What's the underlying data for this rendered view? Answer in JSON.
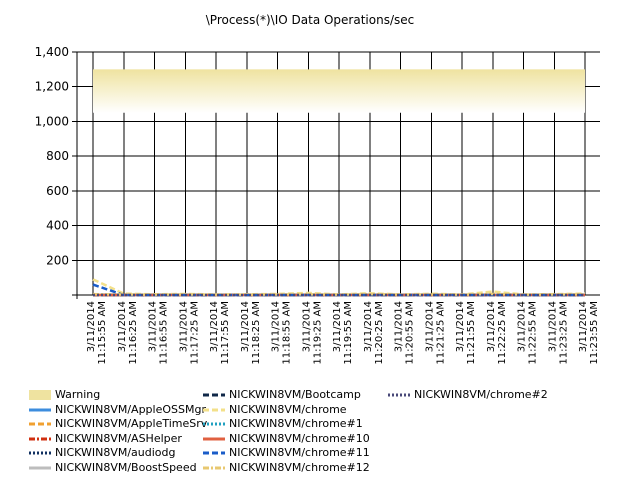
{
  "chart_data": {
    "type": "line",
    "title": "\\Process(*)\\IO Data Operations/sec",
    "xlabel": "",
    "ylabel": "",
    "ylim": [
      0,
      1400
    ],
    "yticks": [
      200,
      400,
      600,
      800,
      1000,
      1200,
      1400
    ],
    "ytick_labels": [
      "200",
      "400",
      "600",
      "800",
      "1,000",
      "1,200",
      "1,400"
    ],
    "grid": true,
    "legend_position": "bottom",
    "categories": [
      "3/11/2014 11:15:55 AM",
      "3/11/2014 11:16:25 AM",
      "3/11/2014 11:16:55 AM",
      "3/11/2014 11:17:25 AM",
      "3/11/2014 11:17:55 AM",
      "3/11/2014 11:18:25 AM",
      "3/11/2014 11:18:55 AM",
      "3/11/2014 11:19:25 AM",
      "3/11/2014 11:19:55 AM",
      "3/11/2014 11:20:25 AM",
      "3/11/2014 11:20:55 AM",
      "3/11/2014 11:21:25 AM",
      "3/11/2014 11:21:55 AM",
      "3/11/2014 11:22:25 AM",
      "3/11/2014 11:22:55 AM",
      "3/11/2014 11:23:25 AM",
      "3/11/2014 11:23:55 AM"
    ],
    "warning_band": {
      "name": "Warning",
      "range": [
        1050,
        1300
      ],
      "color": "#efe3a0"
    },
    "series": [
      {
        "name": "NICKWIN8VM/AppleOSSMgr",
        "color": "#3c8dde",
        "dash": "solid",
        "values": [
          0,
          0,
          0,
          0,
          0,
          0,
          0,
          0,
          0,
          0,
          0,
          0,
          0,
          0,
          0,
          0,
          0
        ]
      },
      {
        "name": "NICKWIN8VM/AppleTimeSrv",
        "color": "#f0a030",
        "dash": "dash",
        "values": [
          0,
          2,
          1,
          1,
          0,
          1,
          0,
          1,
          0,
          1,
          0,
          1,
          0,
          1,
          0,
          0,
          1
        ]
      },
      {
        "name": "NICKWIN8VM/ASHelper",
        "color": "#d03010",
        "dash": "dashdot",
        "values": [
          0,
          0,
          0,
          0,
          0,
          0,
          0,
          0,
          0,
          0,
          0,
          0,
          0,
          0,
          0,
          0,
          0
        ]
      },
      {
        "name": "NICKWIN8VM/audiodg",
        "color": "#103060",
        "dash": "dot",
        "values": [
          0,
          0,
          0,
          0,
          0,
          0,
          0,
          0,
          0,
          0,
          0,
          0,
          0,
          0,
          0,
          0,
          0
        ]
      },
      {
        "name": "NICKWIN8VM/BoostSpeed",
        "color": "#bdbdbd",
        "dash": "solid",
        "values": [
          0,
          1,
          0,
          0,
          0,
          0,
          0,
          0,
          0,
          0,
          0,
          0,
          0,
          0,
          0,
          0,
          0
        ]
      },
      {
        "name": "NICKWIN8VM/Bootcamp",
        "color": "#102848",
        "dash": "dash",
        "values": [
          0,
          0,
          0,
          0,
          0,
          0,
          0,
          0,
          0,
          0,
          0,
          0,
          0,
          0,
          0,
          0,
          0
        ]
      },
      {
        "name": "NICKWIN8VM/chrome",
        "color": "#f3e08a",
        "dash": "dash",
        "values": [
          90,
          8,
          4,
          6,
          3,
          4,
          6,
          12,
          3,
          10,
          3,
          7,
          3,
          20,
          3,
          5,
          8
        ]
      },
      {
        "name": "NICKWIN8VM/chrome#1",
        "color": "#20a0c0",
        "dash": "dot",
        "values": [
          0,
          1,
          0,
          0,
          0,
          0,
          0,
          0,
          0,
          0,
          0,
          0,
          0,
          0,
          0,
          0,
          0
        ]
      },
      {
        "name": "NICKWIN8VM/chrome#10",
        "color": "#e06040",
        "dash": "solid",
        "values": [
          0,
          0,
          0,
          0,
          0,
          0,
          0,
          0,
          0,
          0,
          0,
          0,
          0,
          0,
          0,
          0,
          0
        ]
      },
      {
        "name": "NICKWIN8VM/chrome#11",
        "color": "#1a5cc8",
        "dash": "dash",
        "values": [
          60,
          0,
          0,
          0,
          0,
          0,
          0,
          0,
          0,
          0,
          0,
          0,
          0,
          0,
          0,
          0,
          0
        ]
      },
      {
        "name": "NICKWIN8VM/chrome#12",
        "color": "#e8c870",
        "dash": "dashdot",
        "values": [
          5,
          3,
          2,
          3,
          2,
          2,
          3,
          4,
          2,
          5,
          2,
          3,
          2,
          6,
          2,
          3,
          4
        ]
      },
      {
        "name": "NICKWIN8VM/chrome#2",
        "color": "#484878",
        "dash": "dot",
        "values": [
          0,
          0,
          0,
          0,
          0,
          0,
          0,
          0,
          0,
          0,
          0,
          0,
          0,
          0,
          0,
          0,
          0
        ]
      }
    ]
  }
}
